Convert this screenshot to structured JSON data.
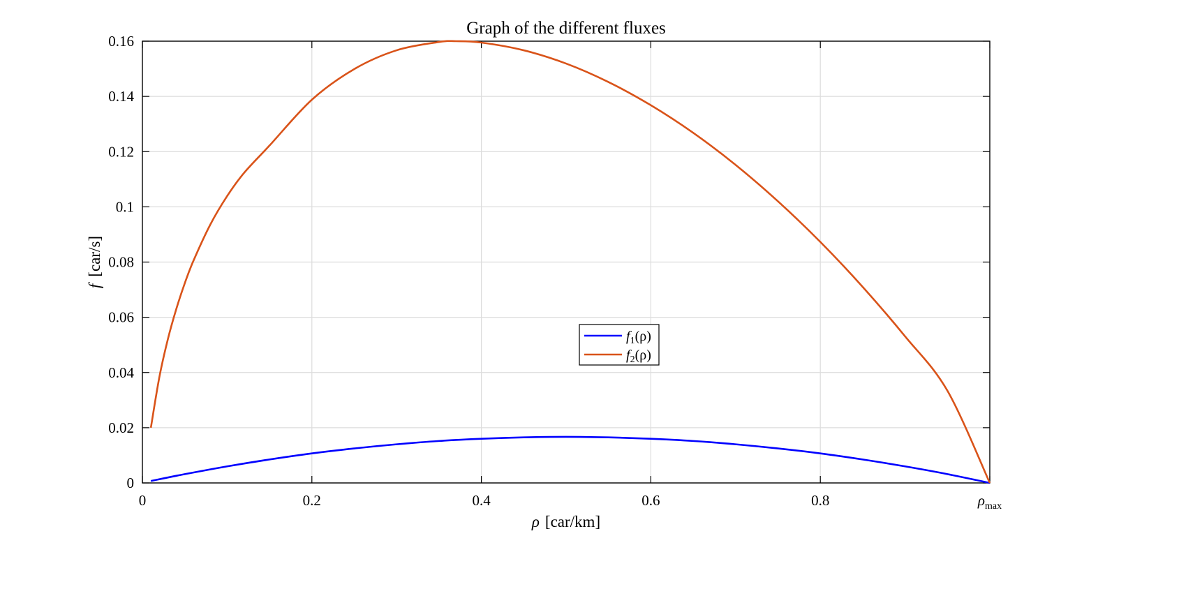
{
  "chart_data": {
    "type": "line",
    "title": "Graph of the different fluxes",
    "xlabel": {
      "symbol": "ρ",
      "unit": "[car/km]"
    },
    "ylabel": {
      "symbol": "f",
      "unit": "[car/s]"
    },
    "xlim": [
      0,
      1
    ],
    "ylim": [
      0,
      0.16
    ],
    "x_ticks": [
      {
        "value": 0,
        "label": "0"
      },
      {
        "value": 0.2,
        "label": "0.2"
      },
      {
        "value": 0.4,
        "label": "0.4"
      },
      {
        "value": 0.6,
        "label": "0.6"
      },
      {
        "value": 0.8,
        "label": "0.8"
      },
      {
        "value": 1,
        "label": "ρ",
        "subscript": "max"
      }
    ],
    "y_ticks": [
      {
        "value": 0,
        "label": "0"
      },
      {
        "value": 0.02,
        "label": "0.02"
      },
      {
        "value": 0.04,
        "label": "0.04"
      },
      {
        "value": 0.06,
        "label": "0.06"
      },
      {
        "value": 0.08,
        "label": "0.08"
      },
      {
        "value": 0.1,
        "label": "0.1"
      },
      {
        "value": 0.12,
        "label": "0.12"
      },
      {
        "value": 0.14,
        "label": "0.14"
      },
      {
        "value": 0.16,
        "label": "0.16"
      }
    ],
    "grid": true,
    "legend_placement": "center",
    "series": [
      {
        "name": "f1(ρ)",
        "legend": {
          "base": "f",
          "sub": "1",
          "arg": "(ρ)"
        },
        "color": "#0000ff",
        "x": [
          0.01,
          0.05,
          0.1,
          0.15,
          0.2,
          0.25,
          0.3,
          0.35,
          0.4,
          0.45,
          0.5,
          0.55,
          0.6,
          0.65,
          0.7,
          0.75,
          0.8,
          0.85,
          0.9,
          0.95,
          1.0
        ],
        "y": [
          0.0007,
          0.0032,
          0.006,
          0.0085,
          0.0107,
          0.0125,
          0.014,
          0.0152,
          0.016,
          0.0165,
          0.0167,
          0.0165,
          0.016,
          0.0152,
          0.014,
          0.0125,
          0.0107,
          0.0085,
          0.006,
          0.0032,
          0.0
        ]
      },
      {
        "name": "f2(ρ)",
        "legend": {
          "base": "f",
          "sub": "2",
          "arg": "(ρ)"
        },
        "color": "#d95319",
        "x": [
          0.01,
          0.02,
          0.03,
          0.04,
          0.05,
          0.06,
          0.08,
          0.1,
          0.12,
          0.15,
          0.2,
          0.25,
          0.3,
          0.35,
          0.37,
          0.4,
          0.45,
          0.5,
          0.55,
          0.6,
          0.65,
          0.7,
          0.75,
          0.8,
          0.85,
          0.9,
          0.95,
          1.0
        ],
        "y": [
          0.02,
          0.0383,
          0.052,
          0.063,
          0.0723,
          0.0803,
          0.0935,
          0.1039,
          0.1123,
          0.1222,
          0.1388,
          0.1499,
          0.1567,
          0.1597,
          0.16,
          0.1595,
          0.1567,
          0.1519,
          0.1452,
          0.1368,
          0.1268,
          0.1152,
          0.102,
          0.0873,
          0.071,
          0.0531,
          0.0334,
          0.0
        ]
      }
    ]
  }
}
